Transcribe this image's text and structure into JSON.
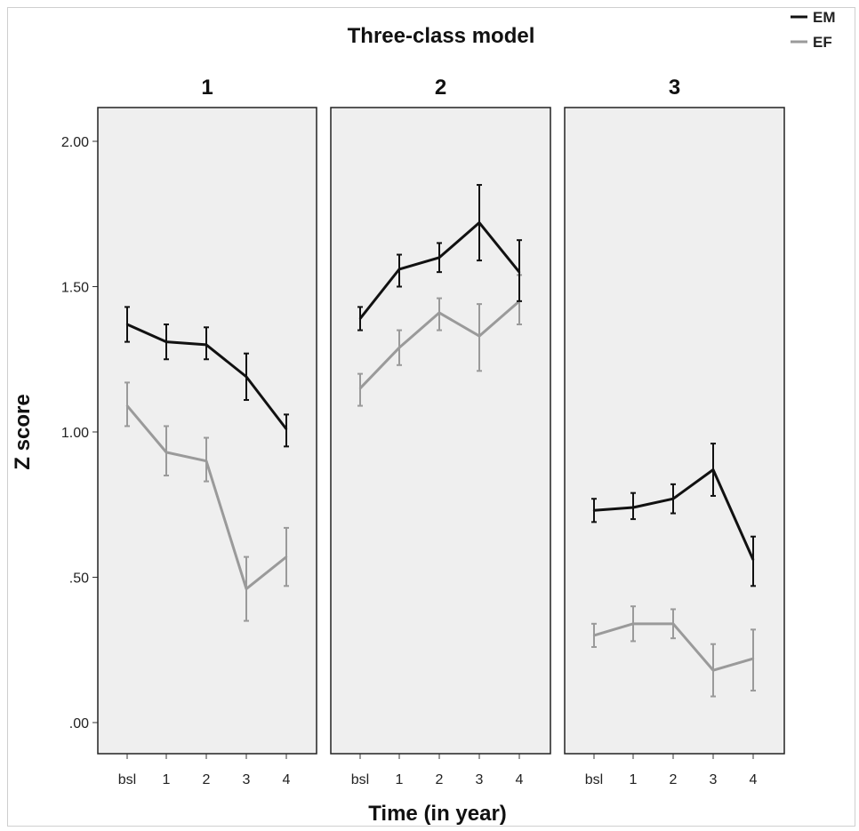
{
  "chart_data": {
    "type": "line",
    "title": "Three-class model",
    "xlabel": "Time (in year)",
    "ylabel": "Z score",
    "categories": [
      "bsl",
      "1",
      "2",
      "3",
      "4"
    ],
    "yticks": [
      ".00",
      ".50",
      "1.00",
      "1.50",
      "2.00"
    ],
    "ylim": [
      -0.1,
      2.12
    ],
    "legend": {
      "position": "top-right",
      "entries": [
        "EM",
        "EF"
      ]
    },
    "colors": {
      "EM": "#111111",
      "EF": "#9a9a9a",
      "panel_bg": "#efefef"
    },
    "panels": [
      {
        "label": "1",
        "series": [
          {
            "name": "EM",
            "values": [
              1.37,
              1.31,
              1.3,
              1.19,
              1.01
            ],
            "lower": [
              1.31,
              1.25,
              1.25,
              1.11,
              0.95
            ],
            "upper": [
              1.43,
              1.37,
              1.36,
              1.27,
              1.06
            ]
          },
          {
            "name": "EF",
            "values": [
              1.09,
              0.93,
              0.9,
              0.46,
              0.57
            ],
            "lower": [
              1.02,
              0.85,
              0.83,
              0.35,
              0.47
            ],
            "upper": [
              1.17,
              1.02,
              0.98,
              0.57,
              0.67
            ]
          }
        ]
      },
      {
        "label": "2",
        "series": [
          {
            "name": "EM",
            "values": [
              1.39,
              1.56,
              1.6,
              1.72,
              1.55
            ],
            "lower": [
              1.35,
              1.5,
              1.55,
              1.59,
              1.45
            ],
            "upper": [
              1.43,
              1.61,
              1.65,
              1.85,
              1.66
            ]
          },
          {
            "name": "EF",
            "values": [
              1.15,
              1.29,
              1.41,
              1.33,
              1.45
            ],
            "lower": [
              1.09,
              1.23,
              1.35,
              1.21,
              1.37
            ],
            "upper": [
              1.2,
              1.35,
              1.46,
              1.44,
              1.54
            ]
          }
        ]
      },
      {
        "label": "3",
        "series": [
          {
            "name": "EM",
            "values": [
              0.73,
              0.74,
              0.77,
              0.87,
              0.56
            ],
            "lower": [
              0.69,
              0.7,
              0.72,
              0.78,
              0.47
            ],
            "upper": [
              0.77,
              0.79,
              0.82,
              0.96,
              0.64
            ]
          },
          {
            "name": "EF",
            "values": [
              0.3,
              0.34,
              0.34,
              0.18,
              0.22
            ],
            "lower": [
              0.26,
              0.28,
              0.29,
              0.09,
              0.11
            ],
            "upper": [
              0.34,
              0.4,
              0.39,
              0.27,
              0.32
            ]
          }
        ]
      }
    ]
  }
}
